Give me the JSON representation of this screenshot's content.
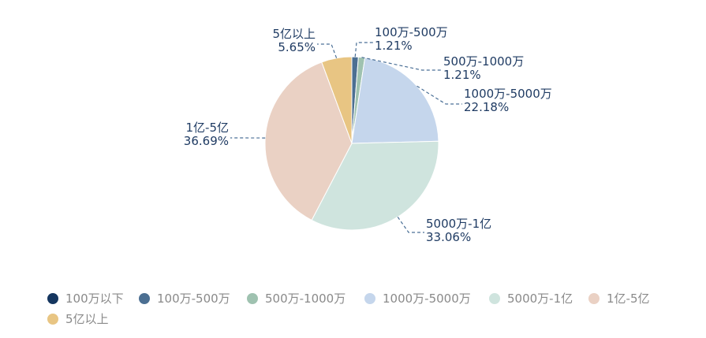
{
  "chart_data": {
    "type": "pie",
    "title": "",
    "legend_position": "bottom-left",
    "slices": [
      {
        "name": "100万以下",
        "value": 0.0,
        "label": "",
        "color": "#15365f"
      },
      {
        "name": "100万-500万",
        "value": 1.21,
        "label": "1.21%",
        "color": "#4c6f92"
      },
      {
        "name": "500万-1000万",
        "value": 1.21,
        "label": "1.21%",
        "color": "#9fc2b0"
      },
      {
        "name": "1000万-5000万",
        "value": 22.18,
        "label": "22.18%",
        "color": "#c5d6ec"
      },
      {
        "name": "5000万-1亿",
        "value": 33.06,
        "label": "33.06%",
        "color": "#cfe4de"
      },
      {
        "name": "1亿-5亿",
        "value": 36.69,
        "label": "36.69%",
        "color": "#ead1c4"
      },
      {
        "name": "5亿以上",
        "value": 5.65,
        "label": "5.65%",
        "color": "#e8c583"
      }
    ]
  }
}
